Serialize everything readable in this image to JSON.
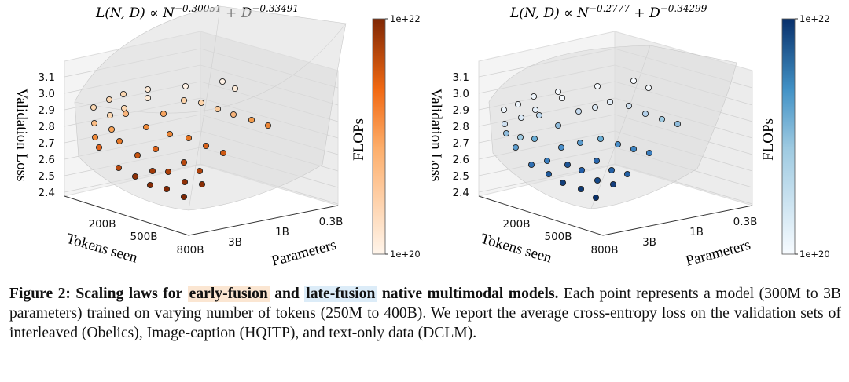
{
  "figure": {
    "panels": [
      {
        "title_html": "L(N, D) ∝ N<tspan baseline-shift='super' font-size='11.5'>−0.30051</tspan> + D<tspan baseline-shift='super' font-size='11.5'>−0.33491</tspan>",
        "title_plain": "L(N, D) ∝ N^−0.30051 + D^−0.33491",
        "variant": "early-fusion",
        "points_color": "#d2691e"
      },
      {
        "title_plain": "L(N, D) ∝ N^−0.2777 + D^−0.34299",
        "variant": "late-fusion",
        "points_color": "#4a7fbf"
      }
    ],
    "z_axis_label": "Validation Loss",
    "z_ticks": [
      "3.1",
      "3.0",
      "2.9",
      "2.8",
      "2.7",
      "2.6",
      "2.5",
      "2.4"
    ],
    "x_axis_label": "Tokens seen",
    "x_ticks": [
      "200B",
      "500B",
      "800B"
    ],
    "y_axis_label": "Parameters",
    "y_ticks": [
      "0.3B",
      "1B",
      "3B"
    ],
    "colorbar_label": "FLOPs",
    "colorbar_max": "1e+22",
    "colorbar_min": "1e+20"
  },
  "caption": {
    "label": "Figure 2: Scaling laws for",
    "early": "early-fusion",
    "and": "and",
    "late": "late-fusion",
    "tail_bold": "native multimodal models.",
    "body": "Each point represents a model (300M to 3B parameters) trained on varying number of tokens (250M to 400B). We report the average cross-entropy loss on the validation sets of interleaved (Obelics), Image-caption (HQITP), and text-only data (DCLM)."
  }
}
